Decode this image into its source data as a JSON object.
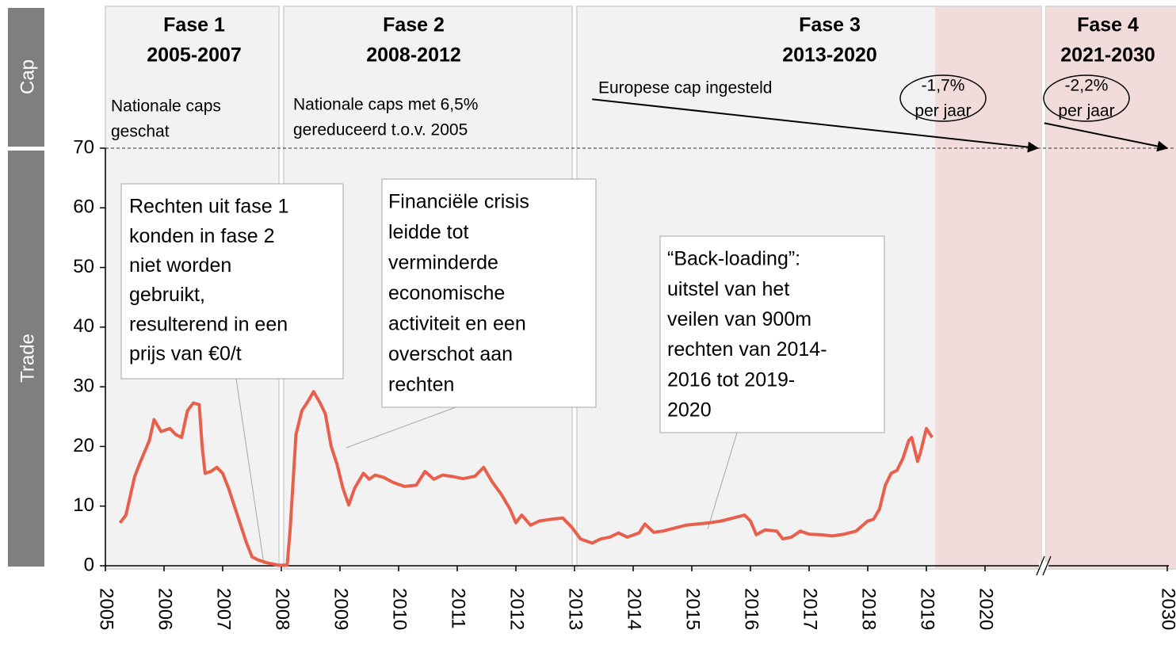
{
  "chart_data": {
    "type": "line",
    "side_labels": [
      "Cap",
      "Trade"
    ],
    "phases": [
      {
        "title": "Fase 1",
        "period": "2005-2007",
        "start": 2005,
        "end": 2008,
        "note": [
          "Nationale caps",
          "geschat"
        ]
      },
      {
        "title": "Fase 2",
        "period": "2008-2012",
        "start": 2008,
        "end": 2013,
        "note": [
          "Nationale caps met 6,5%",
          "gereduceerd t.o.v. 2005"
        ]
      },
      {
        "title": "Fase 3",
        "period": "2013-2020",
        "start": 2013,
        "end": 2021,
        "note": [
          "Europese cap ingesteld"
        ]
      },
      {
        "title": "Fase 4",
        "period": "2021-2030",
        "start": 2021,
        "end": 2030,
        "note": []
      }
    ],
    "highlight_start": 2019.15,
    "cap_arrows": [
      {
        "rate": "-1,7%",
        "unit": "per jaar",
        "from": [
          2013.3,
          78.2
        ],
        "to": [
          2020.9,
          70
        ]
      },
      {
        "rate": "-2,2%",
        "unit": "per jaar",
        "from": [
          2021.05,
          74.2
        ],
        "to": [
          2030,
          70
        ]
      }
    ],
    "annotations": [
      {
        "lines": [
          "Rechten uit fase 1",
          "konden in fase 2",
          "niet worden",
          "gebruikt,",
          "resulterend in een",
          "prijs van €0/t"
        ]
      },
      {
        "lines": [
          "Financiële crisis",
          "leidde tot",
          "verminderde",
          "economische",
          "activiteit en een",
          "overschot aan",
          "rechten"
        ]
      },
      {
        "lines": [
          "“Back-loading”:",
          "uitstel van het",
          "veilen van 900m",
          "rechten van 2014-",
          "2016 tot 2019-",
          "2020"
        ]
      }
    ],
    "x_break": 2021,
    "color": "#e8604c",
    "x": [
      2005.25,
      2005.35,
      2005.5,
      2005.6,
      2005.75,
      2005.83,
      2005.95,
      2006.1,
      2006.2,
      2006.3,
      2006.4,
      2006.5,
      2006.6,
      2006.65,
      2006.7,
      2006.8,
      2006.9,
      2007.0,
      2007.1,
      2007.2,
      2007.3,
      2007.4,
      2007.5,
      2007.6,
      2007.75,
      2007.95,
      2008.1,
      2008.15,
      2008.25,
      2008.35,
      2008.45,
      2008.55,
      2008.65,
      2008.75,
      2008.85,
      2008.95,
      2009.05,
      2009.15,
      2009.25,
      2009.4,
      2009.5,
      2009.6,
      2009.75,
      2009.9,
      2010.1,
      2010.3,
      2010.45,
      2010.6,
      2010.75,
      2010.9,
      2011.1,
      2011.3,
      2011.45,
      2011.6,
      2011.75,
      2011.9,
      2012.0,
      2012.1,
      2012.25,
      2012.4,
      2012.6,
      2012.8,
      2012.95,
      2013.1,
      2013.3,
      2013.45,
      2013.6,
      2013.75,
      2013.9,
      2014.1,
      2014.2,
      2014.35,
      2014.5,
      2014.7,
      2014.9,
      2015.1,
      2015.3,
      2015.5,
      2015.7,
      2015.9,
      2016.0,
      2016.1,
      2016.25,
      2016.45,
      2016.55,
      2016.7,
      2016.85,
      2017.0,
      2017.2,
      2017.4,
      2017.6,
      2017.8,
      2018.0,
      2018.1,
      2018.2,
      2018.3,
      2018.4,
      2018.5,
      2018.6,
      2018.7,
      2018.75,
      2018.85,
      2018.9,
      2019.0,
      2019.1
    ],
    "values": [
      7.2,
      8.5,
      15,
      17.5,
      21,
      24.5,
      22.5,
      23,
      22,
      21.5,
      26,
      27.3,
      27,
      20,
      15.5,
      15.8,
      16.5,
      15.5,
      13,
      10,
      7,
      4,
      1.5,
      1,
      0.5,
      0.1,
      0.1,
      6,
      22,
      26,
      27.5,
      29.2,
      27.5,
      25.5,
      20,
      17,
      13,
      10.2,
      13,
      15.5,
      14.5,
      15.2,
      14.8,
      14,
      13.3,
      13.5,
      15.8,
      14.5,
      15.2,
      15,
      14.6,
      15,
      16.5,
      14,
      12,
      9.5,
      7.2,
      8.5,
      6.8,
      7.5,
      7.8,
      8,
      6.5,
      4.5,
      3.8,
      4.5,
      4.8,
      5.5,
      4.8,
      5.5,
      7,
      5.6,
      5.8,
      6.3,
      6.8,
      7,
      7.2,
      7.5,
      8,
      8.5,
      7.5,
      5.2,
      6,
      5.8,
      4.5,
      4.8,
      5.8,
      5.3,
      5.2,
      5,
      5.3,
      5.8,
      7.5,
      7.8,
      9.5,
      13.5,
      15.5,
      16,
      18,
      21,
      21.5,
      17.5,
      19,
      23,
      21.5
    ],
    "ylim": [
      0,
      70
    ],
    "yticks": [
      0,
      10,
      20,
      30,
      40,
      50,
      60,
      70
    ],
    "xticks": [
      2005,
      2006,
      2007,
      2008,
      2009,
      2010,
      2011,
      2012,
      2013,
      2014,
      2015,
      2016,
      2017,
      2018,
      2019,
      2020,
      2030
    ]
  }
}
